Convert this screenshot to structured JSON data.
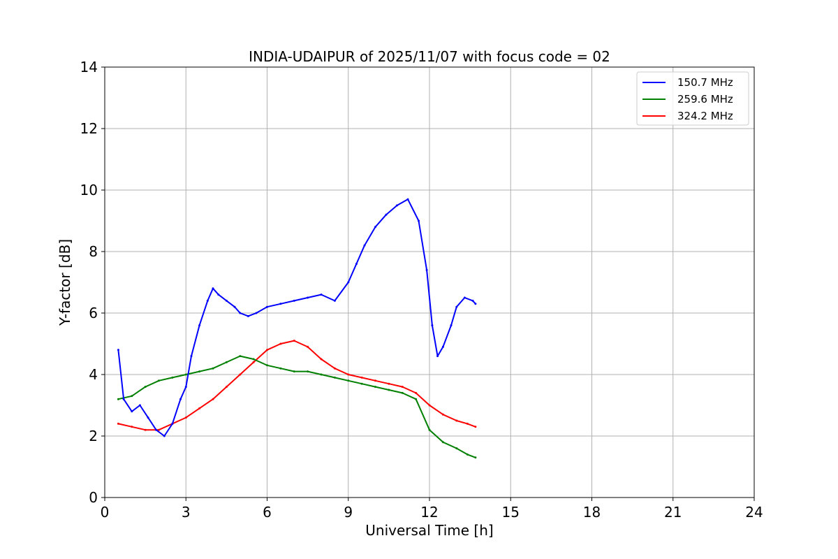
{
  "chart_data": {
    "type": "line",
    "title": "INDIA-UDAIPUR of 2025/11/07 with focus code = 02",
    "xlabel": "Universal Time [h]",
    "ylabel": "Y-factor [dB]",
    "xlim": [
      0,
      24
    ],
    "ylim": [
      0,
      14
    ],
    "xticks": [
      0,
      3,
      6,
      9,
      12,
      15,
      18,
      21,
      24
    ],
    "yticks": [
      0,
      2,
      4,
      6,
      8,
      10,
      12,
      14
    ],
    "grid": true,
    "legend_position": "top-right",
    "series": [
      {
        "name": "150.7 MHz",
        "color": "#0000ff",
        "x": [
          0.5,
          0.7,
          1.0,
          1.3,
          1.6,
          1.9,
          2.2,
          2.5,
          2.8,
          3.0,
          3.2,
          3.5,
          3.8,
          4.0,
          4.2,
          4.5,
          4.8,
          5.0,
          5.3,
          5.6,
          6.0,
          6.5,
          7.0,
          7.5,
          8.0,
          8.5,
          9.0,
          9.3,
          9.6,
          10.0,
          10.4,
          10.8,
          11.2,
          11.6,
          11.9,
          12.1,
          12.3,
          12.5,
          12.8,
          13.0,
          13.3,
          13.6,
          13.7
        ],
        "values": [
          4.8,
          3.2,
          2.8,
          3.0,
          2.6,
          2.2,
          2.0,
          2.4,
          3.2,
          3.6,
          4.6,
          5.6,
          6.4,
          6.8,
          6.6,
          6.4,
          6.2,
          6.0,
          5.9,
          6.0,
          6.2,
          6.3,
          6.4,
          6.5,
          6.6,
          6.4,
          7.0,
          7.6,
          8.2,
          8.8,
          9.2,
          9.5,
          9.7,
          9.0,
          7.4,
          5.6,
          4.6,
          4.9,
          5.6,
          6.2,
          6.5,
          6.4,
          6.3
        ]
      },
      {
        "name": "259.6 MHz",
        "color": "#008000",
        "x": [
          0.5,
          1.0,
          1.5,
          2.0,
          2.5,
          3.0,
          3.5,
          4.0,
          4.5,
          5.0,
          5.5,
          6.0,
          6.5,
          7.0,
          7.5,
          8.0,
          8.5,
          9.0,
          9.5,
          10.0,
          10.5,
          11.0,
          11.5,
          12.0,
          12.5,
          13.0,
          13.4,
          13.7
        ],
        "values": [
          3.2,
          3.3,
          3.6,
          3.8,
          3.9,
          4.0,
          4.1,
          4.2,
          4.4,
          4.6,
          4.5,
          4.3,
          4.2,
          4.1,
          4.1,
          4.0,
          3.9,
          3.8,
          3.7,
          3.6,
          3.5,
          3.4,
          3.2,
          2.2,
          1.8,
          1.6,
          1.4,
          1.3
        ]
      },
      {
        "name": "324.2 MHz",
        "color": "#ff0000",
        "x": [
          0.5,
          1.0,
          1.5,
          2.0,
          2.5,
          3.0,
          3.5,
          4.0,
          4.5,
          5.0,
          5.5,
          6.0,
          6.5,
          7.0,
          7.5,
          8.0,
          8.5,
          9.0,
          9.5,
          10.0,
          10.5,
          11.0,
          11.5,
          12.0,
          12.5,
          13.0,
          13.4,
          13.7
        ],
        "values": [
          2.4,
          2.3,
          2.2,
          2.2,
          2.4,
          2.6,
          2.9,
          3.2,
          3.6,
          4.0,
          4.4,
          4.8,
          5.0,
          5.1,
          4.9,
          4.5,
          4.2,
          4.0,
          3.9,
          3.8,
          3.7,
          3.6,
          3.4,
          3.0,
          2.7,
          2.5,
          2.4,
          2.3
        ]
      }
    ]
  }
}
